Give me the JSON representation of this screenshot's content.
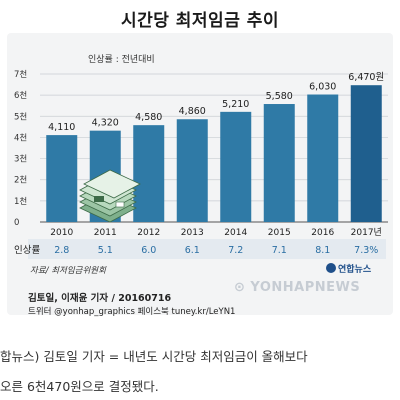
{
  "chart_data": {
    "type": "bar",
    "title": "시간당 최저임금 추이",
    "subtitle": "인상률 : 전년대비",
    "categories": [
      "2010",
      "2011",
      "2012",
      "2013",
      "2014",
      "2015",
      "2016",
      "2017년"
    ],
    "values": [
      4110,
      4320,
      4580,
      4860,
      5210,
      5580,
      6030,
      6470
    ],
    "value_labels": [
      "4,110",
      "4,320",
      "4,580",
      "4,860",
      "5,210",
      "5,580",
      "6,030",
      "6,470원"
    ],
    "ylim": [
      0,
      7000
    ],
    "yticks": [
      0,
      1000,
      2000,
      3000,
      4000,
      5000,
      6000,
      7000
    ],
    "ytick_labels": [
      "0",
      "1천",
      "2천",
      "3천",
      "4천",
      "5천",
      "6천",
      "7천"
    ],
    "grid": true,
    "rate_label": "인상률",
    "rates": [
      "2.8",
      "5.1",
      "6.0",
      "6.1",
      "7.2",
      "7.1",
      "8.1",
      "7.3%"
    ],
    "colors": {
      "bar": "#2f7aa6",
      "bar_highlight": "#1f5f8e",
      "rate": "#2a6ea3"
    }
  },
  "source": "자료/ 최저임금위원회",
  "brand": "연합뉴스",
  "watermark": "YONHAPNEWS",
  "credits": {
    "line1": "김토일, 이재윤 기자 / 20160716",
    "line2": "트위터 @yonhap_graphics 페이스북 tuney.kr/LeYN1"
  },
  "article": {
    "line1": "합뉴스) 김토일 기자 = 내년도 시간당 최저임금이 올해보다",
    "line2": "오른 6천470원으로 결정됐다."
  }
}
